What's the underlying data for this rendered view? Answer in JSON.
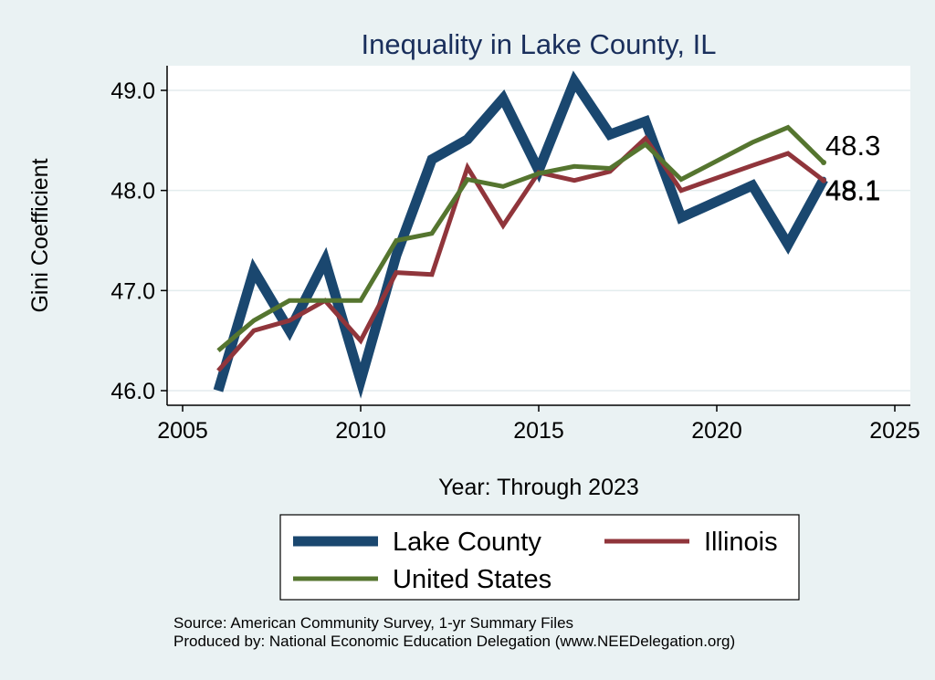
{
  "chart_data": {
    "type": "line",
    "title": "Inequality in Lake County, IL",
    "xlabel": "Year: Through 2023",
    "ylabel": "Gini Coefficient",
    "xlim": [
      2005,
      2025
    ],
    "ylim": [
      46.0,
      49.0
    ],
    "xticks": [
      2005,
      2010,
      2015,
      2020,
      2025
    ],
    "xtick_labels": [
      "2005",
      "2010",
      "2015",
      "2020",
      "2025"
    ],
    "yticks": [
      46.0,
      47.0,
      48.0,
      49.0
    ],
    "ytick_labels": [
      "46.0",
      "47.0",
      "48.0",
      "49.0"
    ],
    "grid": true,
    "legend_position": "bottom",
    "series": [
      {
        "name": "Lake County",
        "color": "#1a476f",
        "x": [
          2006,
          2007,
          2008,
          2009,
          2010,
          2011,
          2012,
          2013,
          2014,
          2015,
          2016,
          2017,
          2018,
          2019,
          2021,
          2022,
          2023
        ],
        "values": [
          46.0,
          47.2,
          46.6,
          47.3,
          46.1,
          47.35,
          48.31,
          48.51,
          48.92,
          48.2,
          49.09,
          48.56,
          48.69,
          47.73,
          48.05,
          47.46,
          48.11
        ]
      },
      {
        "name": "Illinois",
        "color": "#90353b",
        "x": [
          2006,
          2007,
          2008,
          2009,
          2010,
          2011,
          2012,
          2013,
          2014,
          2015,
          2016,
          2017,
          2018,
          2019,
          2021,
          2022,
          2023
        ],
        "values": [
          46.2,
          46.6,
          46.7,
          46.9,
          46.5,
          47.18,
          47.16,
          48.23,
          47.65,
          48.18,
          48.1,
          48.19,
          48.52,
          48.0,
          48.25,
          48.37,
          48.1
        ]
      },
      {
        "name": "United States",
        "color": "#55752f",
        "x": [
          2006,
          2007,
          2008,
          2009,
          2010,
          2011,
          2012,
          2013,
          2014,
          2015,
          2016,
          2017,
          2018,
          2019,
          2021,
          2022,
          2023
        ],
        "values": [
          46.4,
          46.7,
          46.9,
          46.9,
          46.9,
          47.5,
          47.57,
          48.11,
          48.04,
          48.17,
          48.24,
          48.22,
          48.46,
          48.11,
          48.48,
          48.63,
          48.28
        ]
      }
    ],
    "end_labels": [
      {
        "series": "United States",
        "text": "48.3"
      },
      {
        "series": "Illinois",
        "text": "48.1"
      },
      {
        "series": "Lake County",
        "text": "48.1"
      }
    ],
    "notes": [
      "Source: American Community Survey, 1-yr Summary Files",
      "Produced by: National Economic Education Delegation (www.NEEDelegation.org)"
    ]
  }
}
